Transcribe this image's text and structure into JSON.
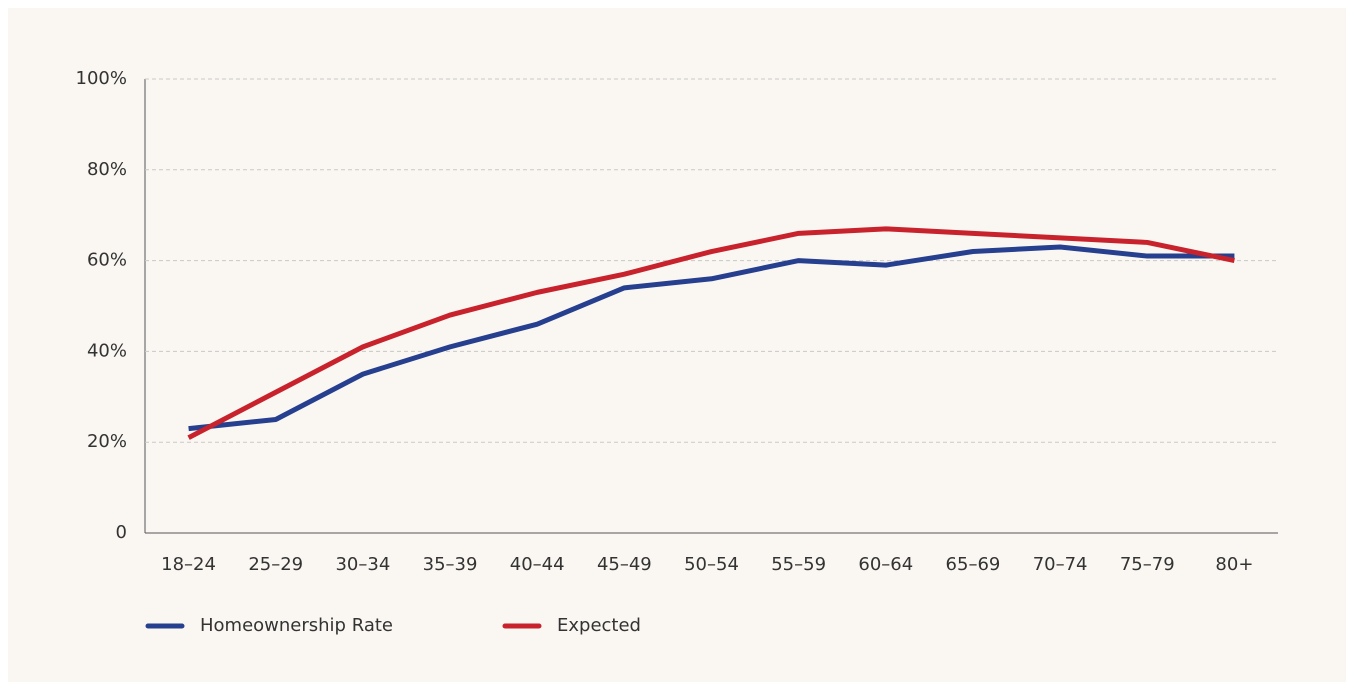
{
  "chart_data": {
    "type": "line",
    "categories": [
      "18–24",
      "25–29",
      "30–34",
      "35–39",
      "40–44",
      "45–49",
      "50–54",
      "55–59",
      "60–64",
      "65–69",
      "70–74",
      "75–79",
      "80+"
    ],
    "series": [
      {
        "name": "Homeownership Rate",
        "color": "#263f8f",
        "values": [
          23,
          25,
          35,
          41,
          46,
          54,
          56,
          60,
          59,
          62,
          63,
          61,
          61
        ]
      },
      {
        "name": "Expected",
        "color": "#c8232c",
        "values": [
          21,
          31,
          41,
          48,
          53,
          57,
          62,
          66,
          67,
          66,
          65,
          64,
          60
        ]
      }
    ],
    "ylim": [
      0,
      100
    ],
    "yticks": [
      0,
      {
        "value": 20,
        "label": "20%"
      },
      {
        "value": 40,
        "label": "40%"
      },
      {
        "value": 60,
        "label": "60%"
      },
      {
        "value": 80,
        "label": "80%"
      },
      {
        "value": 100,
        "label": "100%"
      }
    ],
    "grid": true,
    "legend": "bottom"
  }
}
